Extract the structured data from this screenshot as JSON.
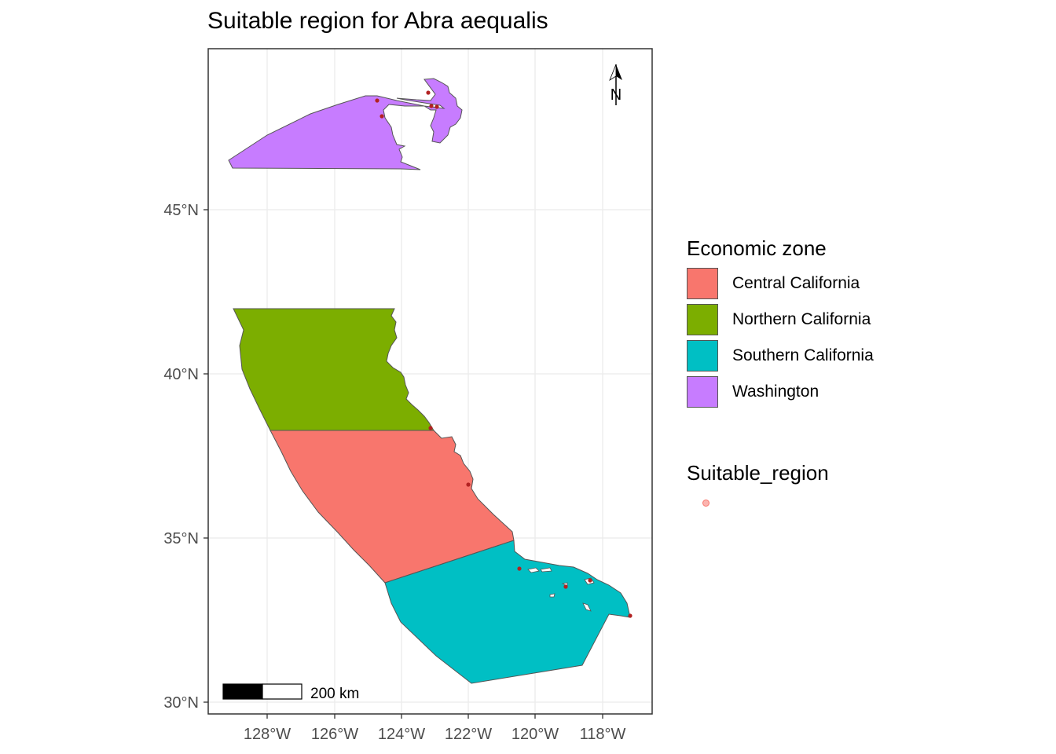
{
  "title": "Suitable region for Abra aequalis",
  "axes": {
    "x_ticks": [
      "128°W",
      "126°W",
      "124°W",
      "122°W",
      "120°W",
      "118°W"
    ],
    "y_ticks": [
      "45°N",
      "40°N",
      "35°N",
      "30°N"
    ]
  },
  "north_arrow_label": "N",
  "scalebar_label": "200 km",
  "legend_fill": {
    "title": "Economic zone",
    "items": [
      {
        "label": "Central California",
        "color": "#F8766D"
      },
      {
        "label": "Northern California",
        "color": "#7CAE00"
      },
      {
        "label": "Southern California",
        "color": "#00BFC4"
      },
      {
        "label": "Washington",
        "color": "#C77CFF"
      }
    ]
  },
  "legend_points": {
    "title": "Suitable_region"
  },
  "colors": {
    "point": "#B22222",
    "panel_border": "#333333",
    "grid": "#EBEBEB"
  }
}
